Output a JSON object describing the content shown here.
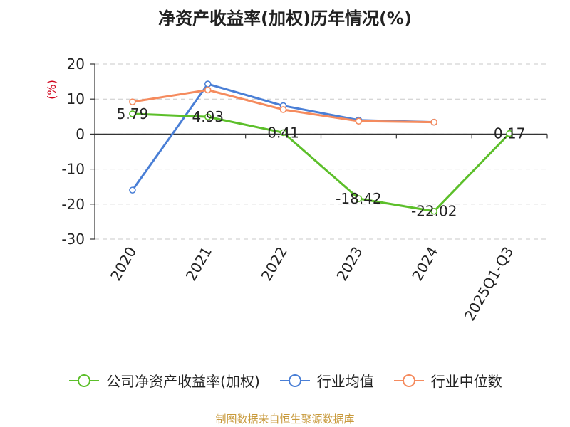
{
  "chart_data": {
    "type": "line",
    "title": "净资产收益率(加权)历年情况(%)",
    "ylabel": "(%)",
    "categories": [
      "2020",
      "2021",
      "2022",
      "2023",
      "2024",
      "2025Q1-Q3"
    ],
    "yticks": [
      "20",
      "10",
      "0",
      "-10",
      "-20",
      "-30"
    ],
    "ylim": [
      -30,
      20
    ],
    "grid": true,
    "legend_position": "bottom",
    "series": [
      {
        "name": "公司净资产收益率(加权)",
        "color": "#5cbf2a",
        "values": [
          5.79,
          4.93,
          0.41,
          -18.42,
          -22.02,
          0.17
        ],
        "labels": [
          "5.79",
          "4.93",
          "0.41",
          "-18.42",
          "-22.02",
          "0.17"
        ]
      },
      {
        "name": "行业均值",
        "color": "#4a7fd6",
        "values": [
          -16.0,
          14.3,
          8.1,
          4.0,
          3.4,
          null
        ]
      },
      {
        "name": "行业中位数",
        "color": "#f58b5e",
        "values": [
          9.2,
          12.6,
          7.0,
          3.7,
          3.4,
          null
        ]
      }
    ]
  },
  "footer": {
    "source": "制图数据来自恒生聚源数据库"
  }
}
